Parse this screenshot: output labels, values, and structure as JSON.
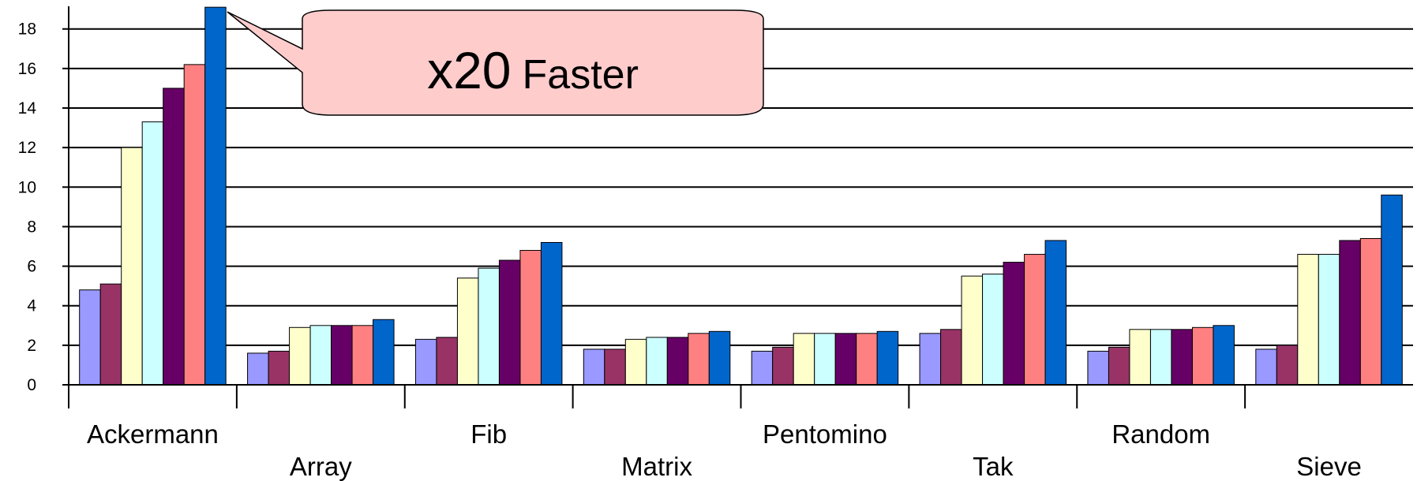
{
  "chart_data": {
    "type": "bar",
    "categories": [
      "Ackermann",
      "Array",
      "Fib",
      "Matrix",
      "Pentomino",
      "Tak",
      "Random",
      "Sieve"
    ],
    "series": [
      {
        "color": "#9999ff",
        "values": [
          4.8,
          1.6,
          2.3,
          1.8,
          1.7,
          2.6,
          1.7,
          1.8
        ]
      },
      {
        "color": "#993366",
        "values": [
          5.1,
          1.7,
          2.4,
          1.8,
          1.9,
          2.8,
          1.9,
          2.0
        ]
      },
      {
        "color": "#ffffcc",
        "values": [
          12.0,
          2.9,
          5.4,
          2.3,
          2.6,
          5.5,
          2.8,
          6.6
        ]
      },
      {
        "color": "#ccffff",
        "values": [
          13.3,
          3.0,
          5.9,
          2.4,
          2.6,
          5.6,
          2.8,
          6.6
        ]
      },
      {
        "color": "#660066",
        "values": [
          15.0,
          3.0,
          6.3,
          2.4,
          2.6,
          6.2,
          2.8,
          7.3
        ]
      },
      {
        "color": "#ff8080",
        "values": [
          16.2,
          3.0,
          6.8,
          2.6,
          2.6,
          6.6,
          2.9,
          7.4
        ]
      },
      {
        "color": "#0066cc",
        "values": [
          19.1,
          3.3,
          7.2,
          2.7,
          2.7,
          7.3,
          3.0,
          9.6
        ]
      }
    ],
    "y_ticks": [
      0,
      2,
      4,
      6,
      8,
      10,
      12,
      14,
      16,
      18
    ],
    "ylim": [
      0,
      19
    ],
    "grid": true,
    "title": "",
    "xlabel": "",
    "ylabel": ""
  },
  "annotation": {
    "prefix": "x20",
    "suffix": "Faster",
    "fill_color": "#ffcccc"
  }
}
